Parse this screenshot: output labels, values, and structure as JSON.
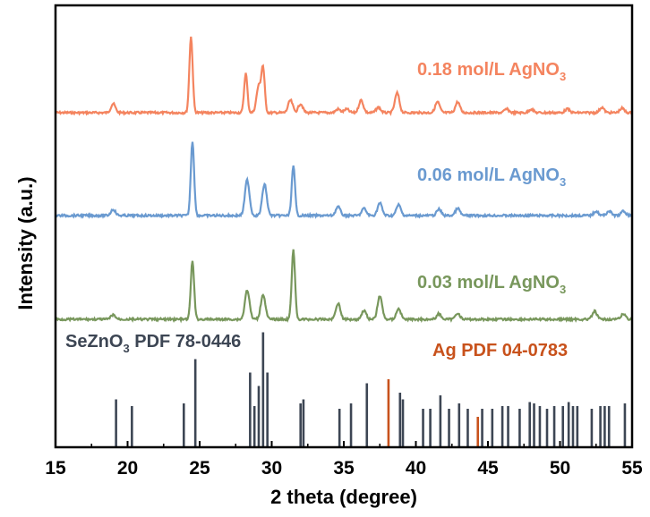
{
  "chart_data": {
    "type": "line",
    "xlabel": "2 theta (degree)",
    "ylabel": "Intensity (a.u.)",
    "xlim": [
      15,
      55
    ],
    "x_ticks": [
      15,
      20,
      25,
      30,
      35,
      40,
      45,
      50,
      55
    ],
    "y_ticks_shown": false,
    "grid": false,
    "series": [
      {
        "name": "0.18 mol/L AgNO3",
        "label_main": "0.18 mol/L AgNO",
        "label_sub": "3",
        "color": "#f4845f",
        "baseline": 126,
        "peaks": [
          [
            19.0,
            10
          ],
          [
            24.4,
            85
          ],
          [
            28.2,
            44
          ],
          [
            29.1,
            30
          ],
          [
            29.4,
            48
          ],
          [
            31.3,
            14
          ],
          [
            32.0,
            10
          ],
          [
            34.6,
            4
          ],
          [
            35.2,
            4
          ],
          [
            36.2,
            14
          ],
          [
            37.4,
            6
          ],
          [
            38.7,
            22
          ],
          [
            41.5,
            12
          ],
          [
            42.9,
            12
          ],
          [
            46.3,
            4
          ],
          [
            48.0,
            4
          ],
          [
            50.5,
            4
          ],
          [
            52.9,
            6
          ],
          [
            54.3,
            5
          ]
        ]
      },
      {
        "name": "0.06 mol/L AgNO3",
        "label_main": "0.06 mol/L AgNO",
        "label_sub": "3",
        "color": "#6a9ad0",
        "baseline": 241,
        "peaks": [
          [
            19.0,
            7
          ],
          [
            24.5,
            83
          ],
          [
            28.3,
            40
          ],
          [
            29.5,
            35
          ],
          [
            31.5,
            55
          ],
          [
            34.6,
            10
          ],
          [
            36.4,
            8
          ],
          [
            37.5,
            14
          ],
          [
            38.8,
            12
          ],
          [
            41.6,
            7
          ],
          [
            42.9,
            8
          ],
          [
            52.5,
            5
          ],
          [
            53.4,
            5
          ],
          [
            54.4,
            5
          ]
        ]
      },
      {
        "name": "0.03 mol/L AgNO3",
        "label_main": "0.03 mol/L AgNO",
        "label_sub": "3",
        "color": "#78975c",
        "baseline": 357,
        "peaks": [
          [
            19.0,
            5
          ],
          [
            24.5,
            65
          ],
          [
            28.3,
            33
          ],
          [
            29.4,
            28
          ],
          [
            31.5,
            77
          ],
          [
            34.6,
            18
          ],
          [
            36.4,
            10
          ],
          [
            37.5,
            26
          ],
          [
            38.8,
            12
          ],
          [
            41.6,
            6
          ],
          [
            42.9,
            7
          ],
          [
            52.4,
            9
          ],
          [
            54.4,
            6
          ]
        ]
      }
    ],
    "reference_patterns": [
      {
        "label_main": "SeZnO",
        "label_sub": "3",
        "label_rest": " PDF 78-0446",
        "color": "#3d4654",
        "lines": [
          [
            19.2,
            0.35
          ],
          [
            20.3,
            0.3
          ],
          [
            23.9,
            0.32
          ],
          [
            24.7,
            0.65
          ],
          [
            28.5,
            0.55
          ],
          [
            28.8,
            0.3
          ],
          [
            29.1,
            0.45
          ],
          [
            29.4,
            0.85
          ],
          [
            29.7,
            0.55
          ],
          [
            32.0,
            0.32
          ],
          [
            32.2,
            0.35
          ],
          [
            34.7,
            0.28
          ],
          [
            35.5,
            0.32
          ],
          [
            36.6,
            0.47
          ],
          [
            38.9,
            0.4
          ],
          [
            39.1,
            0.35
          ],
          [
            40.5,
            0.28
          ],
          [
            41.0,
            0.28
          ],
          [
            41.7,
            0.38
          ],
          [
            42.3,
            0.28
          ],
          [
            43.0,
            0.32
          ],
          [
            43.6,
            0.28
          ],
          [
            44.6,
            0.28
          ],
          [
            45.3,
            0.28
          ],
          [
            46.0,
            0.3
          ],
          [
            46.4,
            0.3
          ],
          [
            47.2,
            0.28
          ],
          [
            47.9,
            0.33
          ],
          [
            48.2,
            0.32
          ],
          [
            48.6,
            0.3
          ],
          [
            49.1,
            0.28
          ],
          [
            49.6,
            0.3
          ],
          [
            50.2,
            0.3
          ],
          [
            50.6,
            0.33
          ],
          [
            50.9,
            0.3
          ],
          [
            51.2,
            0.3
          ],
          [
            52.2,
            0.28
          ],
          [
            52.8,
            0.3
          ],
          [
            53.1,
            0.3
          ],
          [
            53.4,
            0.3
          ],
          [
            54.5,
            0.32
          ]
        ]
      },
      {
        "label_main": "Ag PDF 04-0783",
        "color": "#c8521c",
        "lines": [
          [
            38.1,
            0.5
          ],
          [
            44.3,
            0.22
          ]
        ]
      }
    ]
  }
}
